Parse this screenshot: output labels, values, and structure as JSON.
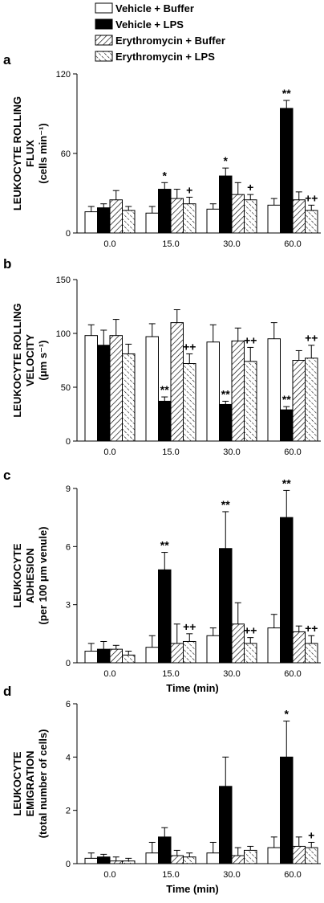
{
  "colors": {
    "ink": "#000000",
    "paper": "#ffffff"
  },
  "legend": [
    {
      "series": "Vehicle + Buffer",
      "pattern": "white"
    },
    {
      "series": "Vehicle + LPS",
      "pattern": "black"
    },
    {
      "series": "Erythromycin + Buffer",
      "pattern": "hatch-down"
    },
    {
      "series": "Erythromycin + LPS",
      "pattern": "hatch-up"
    }
  ],
  "chart_data": [
    {
      "type": "bar",
      "panel": "a",
      "ylabel_lines": [
        "LEUKOCYTE ROLLING",
        "FLUX",
        "(cells min⁻¹)"
      ],
      "xlabel": "",
      "categories": [
        "0.0",
        "15.0",
        "30.0",
        "60.0"
      ],
      "ylim": [
        0,
        120
      ],
      "yticks": [
        "0",
        "60",
        "120"
      ],
      "series": [
        {
          "name": "Vehicle + Buffer",
          "values": [
            16,
            15,
            18,
            21
          ],
          "errors": [
            4,
            5,
            4,
            5
          ]
        },
        {
          "name": "Vehicle + LPS",
          "values": [
            19,
            33,
            43,
            94
          ],
          "errors": [
            3,
            5,
            6,
            6
          ]
        },
        {
          "name": "Erythromycin + Buffer",
          "values": [
            25,
            26,
            29,
            25
          ],
          "errors": [
            7,
            7,
            9,
            6
          ]
        },
        {
          "name": "Erythromycin + LPS",
          "values": [
            17,
            22,
            25,
            17
          ],
          "errors": [
            3,
            5,
            4,
            4
          ]
        }
      ],
      "annotations": [
        {
          "category": 1,
          "series": 1,
          "text": "*"
        },
        {
          "category": 1,
          "series": 3,
          "text": "+"
        },
        {
          "category": 2,
          "series": 1,
          "text": "*"
        },
        {
          "category": 2,
          "series": 3,
          "text": "+"
        },
        {
          "category": 3,
          "series": 1,
          "text": "**"
        },
        {
          "category": 3,
          "series": 3,
          "text": "++"
        }
      ]
    },
    {
      "type": "bar",
      "panel": "b",
      "ylabel_lines": [
        "LEUKOCYTE ROLLING",
        "VELOCITY",
        "(μm s⁻¹)"
      ],
      "xlabel": "",
      "categories": [
        "0.0",
        "15.0",
        "30.0",
        "60.0"
      ],
      "ylim": [
        0,
        150
      ],
      "yticks": [
        "0",
        "50",
        "100",
        "150"
      ],
      "series": [
        {
          "name": "Vehicle + Buffer",
          "values": [
            98,
            97,
            92,
            95
          ],
          "errors": [
            10,
            12,
            16,
            15
          ]
        },
        {
          "name": "Vehicle + LPS",
          "values": [
            89,
            37,
            34,
            29
          ],
          "errors": [
            14,
            4,
            3,
            3
          ]
        },
        {
          "name": "Erythromycin + Buffer",
          "values": [
            98,
            110,
            93,
            75
          ],
          "errors": [
            15,
            12,
            12,
            9
          ]
        },
        {
          "name": "Erythromycin + LPS",
          "values": [
            81,
            72,
            74,
            77
          ],
          "errors": [
            9,
            9,
            13,
            12
          ]
        }
      ],
      "annotations": [
        {
          "category": 1,
          "series": 1,
          "text": "**"
        },
        {
          "category": 1,
          "series": 3,
          "text": "++"
        },
        {
          "category": 2,
          "series": 1,
          "text": "**"
        },
        {
          "category": 2,
          "series": 3,
          "text": "++"
        },
        {
          "category": 3,
          "series": 1,
          "text": "**"
        },
        {
          "category": 3,
          "series": 3,
          "text": "++"
        }
      ]
    },
    {
      "type": "bar",
      "panel": "c",
      "ylabel_lines": [
        "LEUKOCYTE",
        "ADHESION",
        "(per 100 μm venule)"
      ],
      "xlabel": "Time (min)",
      "categories": [
        "0.0",
        "15.0",
        "30.0",
        "60.0"
      ],
      "ylim": [
        0,
        9
      ],
      "yticks": [
        "0",
        "3",
        "6",
        "9"
      ],
      "series": [
        {
          "name": "Vehicle + Buffer",
          "values": [
            0.6,
            0.8,
            1.4,
            1.8
          ],
          "errors": [
            0.4,
            0.6,
            0.4,
            0.7
          ]
        },
        {
          "name": "Vehicle + LPS",
          "values": [
            0.7,
            4.8,
            5.9,
            7.5
          ],
          "errors": [
            0.4,
            0.9,
            1.9,
            1.4
          ]
        },
        {
          "name": "Erythromycin + Buffer",
          "values": [
            0.7,
            1.0,
            2.0,
            1.6
          ],
          "errors": [
            0.2,
            1.0,
            1.1,
            0.3
          ]
        },
        {
          "name": "Erythromycin + LPS",
          "values": [
            0.4,
            1.1,
            1.0,
            1.0
          ],
          "errors": [
            0.2,
            0.4,
            0.3,
            0.4
          ]
        }
      ],
      "annotations": [
        {
          "category": 1,
          "series": 1,
          "text": "**"
        },
        {
          "category": 1,
          "series": 3,
          "text": "++"
        },
        {
          "category": 2,
          "series": 1,
          "text": "**"
        },
        {
          "category": 2,
          "series": 3,
          "text": "++"
        },
        {
          "category": 3,
          "series": 1,
          "text": "**"
        },
        {
          "category": 3,
          "series": 3,
          "text": "++"
        }
      ]
    },
    {
      "type": "bar",
      "panel": "d",
      "ylabel_lines": [
        "LEUKOCYTE",
        "EMIGRATION",
        "(total number of cells)"
      ],
      "xlabel": "Time (min)",
      "categories": [
        "0.0",
        "15.0",
        "30.0",
        "60.0"
      ],
      "ylim": [
        0,
        6
      ],
      "yticks": [
        "0",
        "2",
        "4",
        "6"
      ],
      "series": [
        {
          "name": "Vehicle + Buffer",
          "values": [
            0.2,
            0.4,
            0.4,
            0.6
          ],
          "errors": [
            0.2,
            0.4,
            0.4,
            0.4
          ]
        },
        {
          "name": "Vehicle + LPS",
          "values": [
            0.25,
            1.0,
            2.9,
            4.0
          ],
          "errors": [
            0.1,
            0.35,
            1.1,
            1.35
          ]
        },
        {
          "name": "Erythromycin + Buffer",
          "values": [
            0.1,
            0.3,
            0.3,
            0.65
          ],
          "errors": [
            0.15,
            0.2,
            0.3,
            0.35
          ]
        },
        {
          "name": "Erythromycin + LPS",
          "values": [
            0.1,
            0.25,
            0.5,
            0.6
          ],
          "errors": [
            0.1,
            0.15,
            0.15,
            0.2
          ]
        }
      ],
      "annotations": [
        {
          "category": 3,
          "series": 1,
          "text": "*"
        },
        {
          "category": 3,
          "series": 3,
          "text": "+"
        }
      ]
    }
  ]
}
